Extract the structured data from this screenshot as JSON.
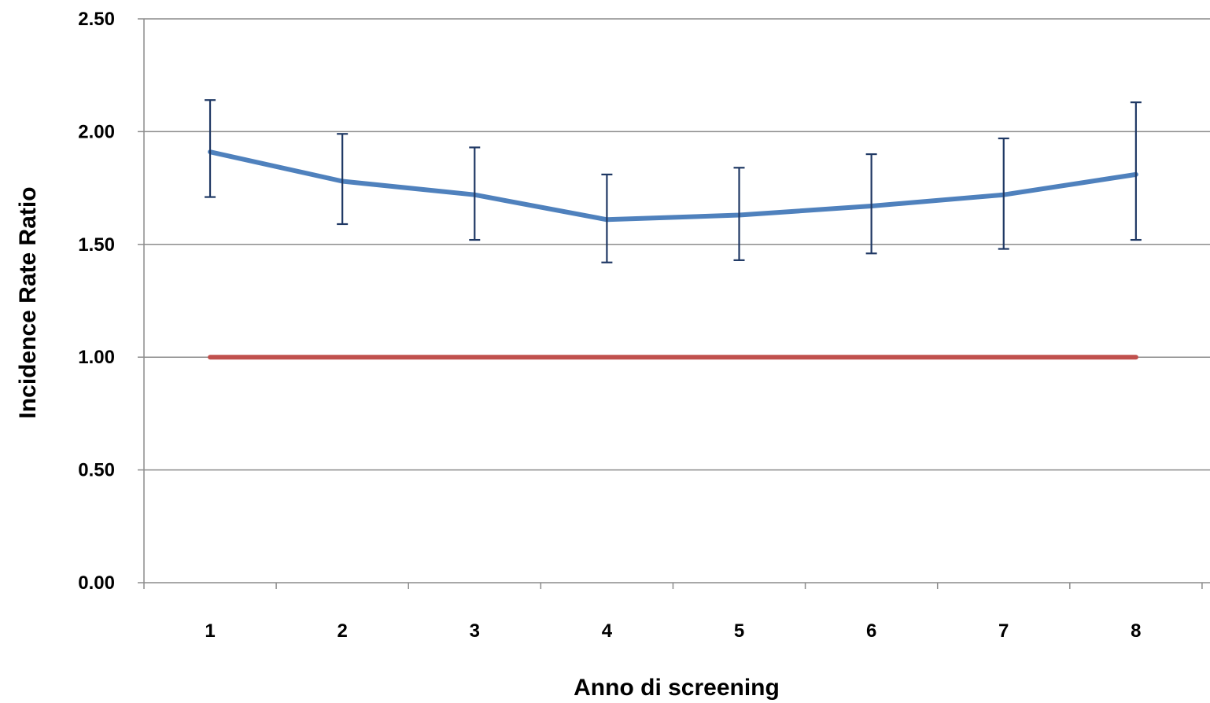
{
  "chart_data": {
    "type": "line",
    "title": "",
    "xlabel": "Anno di screening",
    "ylabel": "Incidence Rate Ratio",
    "categories": [
      "1",
      "2",
      "3",
      "4",
      "5",
      "6",
      "7",
      "8"
    ],
    "ylim": [
      0,
      2.5
    ],
    "yticks": [
      "0.00",
      "0.50",
      "1.00",
      "1.50",
      "2.00",
      "2.50"
    ],
    "grid": "horizontal",
    "legend": "none",
    "series": [
      {
        "values": [
          1.91,
          1.78,
          1.72,
          1.61,
          1.63,
          1.67,
          1.72,
          1.81
        ],
        "error_low": [
          1.71,
          1.59,
          1.52,
          1.42,
          1.43,
          1.46,
          1.48,
          1.52
        ],
        "error_high": [
          2.14,
          1.99,
          1.93,
          1.81,
          1.84,
          1.9,
          1.97,
          2.13
        ],
        "color": "#4F81BD",
        "error_color": "#1F3864"
      },
      {
        "values": [
          1.0,
          1.0,
          1.0,
          1.0,
          1.0,
          1.0,
          1.0,
          1.0
        ],
        "color": "#C0504D"
      }
    ]
  }
}
